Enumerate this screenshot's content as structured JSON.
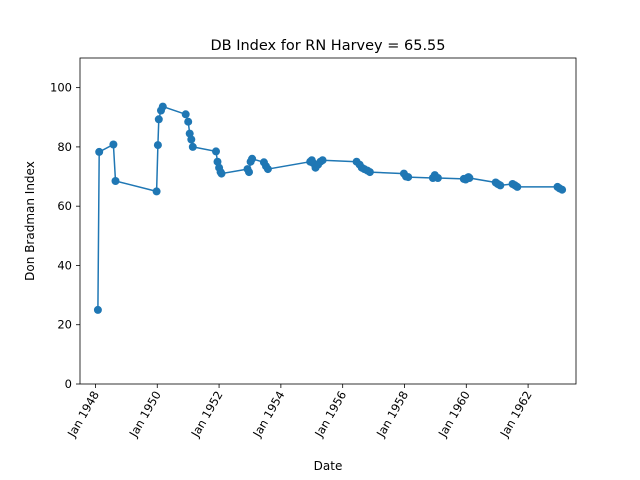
{
  "chart_data": {
    "type": "line",
    "title": "DB Index for RN Harvey = 65.55",
    "xlabel": "Date",
    "ylabel": "Don Bradman Index",
    "ylim": [
      0,
      110
    ],
    "xlim": [
      1947.5,
      1963.55
    ],
    "xticks": [
      {
        "value": 1948,
        "label": "Jan 1948"
      },
      {
        "value": 1950,
        "label": "Jan 1950"
      },
      {
        "value": 1952,
        "label": "Jan 1952"
      },
      {
        "value": 1954,
        "label": "Jan 1954"
      },
      {
        "value": 1956,
        "label": "Jan 1956"
      },
      {
        "value": 1958,
        "label": "Jan 1958"
      },
      {
        "value": 1960,
        "label": "Jan 1960"
      },
      {
        "value": 1962,
        "label": "Jan 1962"
      }
    ],
    "yticks": [
      0,
      20,
      40,
      60,
      80,
      100
    ],
    "grid": false,
    "marker": "circle",
    "color": "#1f77b4",
    "series": [
      {
        "x": [
          1948.08,
          1948.12,
          1948.58,
          1948.65,
          1949.98,
          1950.02,
          1950.05,
          1950.12,
          1950.18,
          1950.92,
          1951.0,
          1951.05,
          1951.1,
          1951.15,
          1951.9,
          1951.95,
          1952.0,
          1952.05,
          1952.08,
          1952.92,
          1952.97,
          1953.02,
          1953.07,
          1953.45,
          1953.52,
          1953.58,
          1954.95,
          1955.0,
          1955.05,
          1955.12,
          1955.2,
          1955.28,
          1955.35,
          1956.45,
          1956.55,
          1956.62,
          1956.7,
          1956.8,
          1956.88,
          1957.98,
          1958.05,
          1958.12,
          1958.92,
          1958.98,
          1959.08,
          1959.92,
          1959.98,
          1960.03,
          1960.07,
          1960.1,
          1960.95,
          1961.02,
          1961.1,
          1961.5,
          1961.58,
          1961.65,
          1962.95,
          1963.02,
          1963.1
        ],
        "y": [
          25.0,
          78.3,
          80.8,
          68.5,
          65.0,
          80.6,
          89.3,
          92.3,
          93.6,
          91.0,
          88.5,
          84.5,
          82.5,
          80.0,
          78.5,
          75.0,
          73.0,
          71.5,
          71.0,
          72.5,
          71.5,
          75.0,
          76.0,
          74.8,
          73.5,
          72.5,
          75.0,
          75.5,
          74.5,
          73.0,
          74.0,
          75.0,
          75.5,
          75.0,
          74.0,
          73.0,
          72.5,
          72.0,
          71.5,
          71.0,
          70.0,
          69.8,
          69.5,
          70.5,
          69.5,
          69.2,
          69.0,
          69.5,
          69.8,
          69.5,
          68.0,
          67.5,
          67.0,
          67.5,
          67.0,
          66.5,
          66.5,
          66.0,
          65.55
        ]
      }
    ]
  }
}
